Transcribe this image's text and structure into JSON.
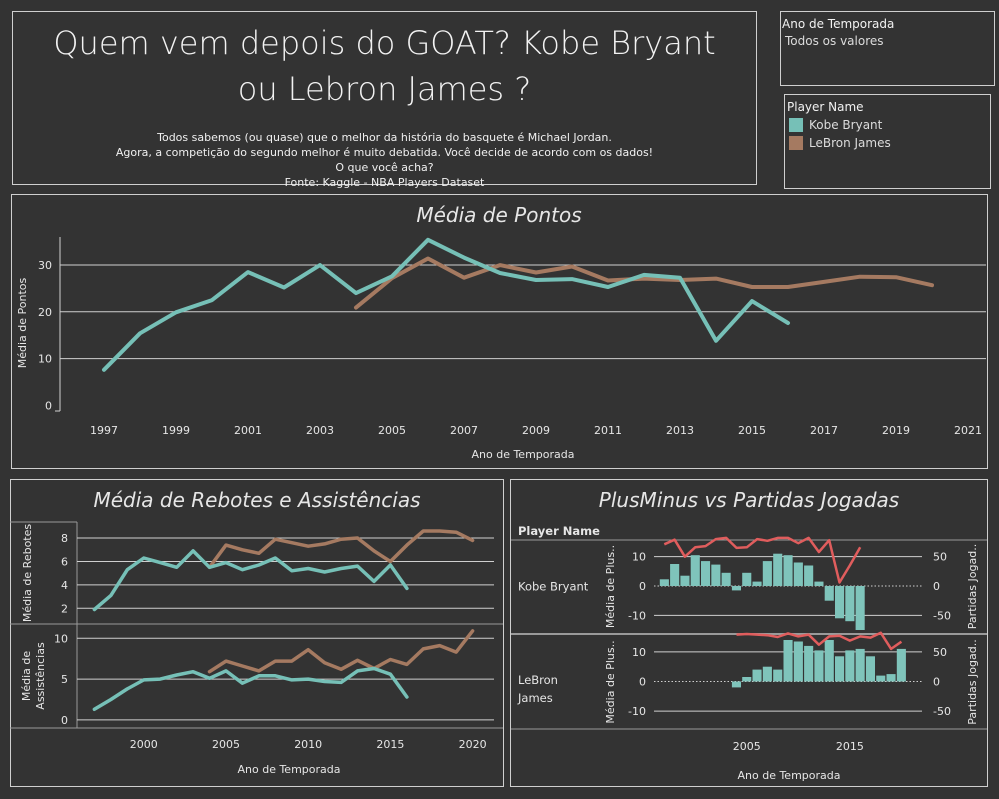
{
  "header": {
    "title": "Quem vem depois do GOAT? Kobe Bryant ou Lebron James ?",
    "subtitle_lines": [
      "Todos sabemos (ou quase) que o melhor da história do basquete é Michael Jordan.",
      "Agora, a competição do segundo melhor é muito debatida. Você decide de acordo com os dados!",
      "O que você acha?",
      "Fonte: Kaggle - NBA Players Dataset"
    ]
  },
  "filter": {
    "label": "Ano de Temporada",
    "value": "Todos os valores"
  },
  "legend": {
    "title": "Player Name",
    "items": [
      {
        "name": "Kobe Bryant",
        "color": "#76c0b7"
      },
      {
        "name": "LeBron James",
        "color": "#a57a61"
      }
    ]
  },
  "colors": {
    "kobe": "#76c0b7",
    "lebron": "#a57a61",
    "plusminus_line": "#e05d5d",
    "bar": "#7fc4bb"
  },
  "chart_data": [
    {
      "type": "line",
      "title": "Média de Pontos",
      "xlabel": "Ano de Temporada",
      "ylabel": "Média de Pontos",
      "xlim": [
        1996,
        2021.5
      ],
      "ylim": [
        -1,
        36
      ],
      "xticks": [
        1997,
        1999,
        2001,
        2003,
        2005,
        2007,
        2009,
        2011,
        2013,
        2015,
        2017,
        2019,
        2021
      ],
      "yticks": [
        0,
        10,
        20,
        30
      ],
      "series": [
        {
          "name": "Kobe Bryant",
          "x": [
            1997,
            1998,
            1999,
            2000,
            2001,
            2002,
            2003,
            2004,
            2005,
            2006,
            2007,
            2008,
            2009,
            2010,
            2011,
            2012,
            2013,
            2014,
            2015,
            2016
          ],
          "y": [
            7.6,
            15.4,
            19.9,
            22.5,
            28.5,
            25.2,
            30.0,
            24.0,
            27.6,
            35.4,
            31.6,
            28.3,
            26.8,
            27.0,
            25.3,
            27.9,
            27.3,
            13.8,
            22.3,
            17.6
          ]
        },
        {
          "name": "LeBron James",
          "x": [
            2004,
            2005,
            2006,
            2007,
            2008,
            2009,
            2010,
            2011,
            2012,
            2013,
            2014,
            2015,
            2016,
            2017,
            2018,
            2019,
            2020
          ],
          "y": [
            20.9,
            27.2,
            31.4,
            27.3,
            30.0,
            28.4,
            29.7,
            26.7,
            27.1,
            26.8,
            27.1,
            25.3,
            25.3,
            26.4,
            27.5,
            27.4,
            25.7
          ]
        }
      ]
    },
    {
      "type": "line",
      "title": "Média de Rebotes e Assistências",
      "xlabel": "Ano de Temporada",
      "xlim": [
        1996,
        2021.3
      ],
      "xticks": [
        2000,
        2005,
        2010,
        2015,
        2020
      ],
      "panels": [
        {
          "ylabel": "Média de Rebotes",
          "ylim": [
            1,
            9.2
          ],
          "yticks": [
            2,
            4,
            6,
            8
          ],
          "series": [
            {
              "name": "Kobe Bryant",
              "x": [
                1997,
                1998,
                1999,
                2000,
                2001,
                2002,
                2003,
                2004,
                2005,
                2006,
                2007,
                2008,
                2009,
                2010,
                2011,
                2012,
                2013,
                2014,
                2015,
                2016
              ],
              "y": [
                1.9,
                3.1,
                5.3,
                6.3,
                5.9,
                5.5,
                6.9,
                5.5,
                5.9,
                5.3,
                5.7,
                6.3,
                5.2,
                5.4,
                5.1,
                5.4,
                5.6,
                4.3,
                5.7,
                3.7
              ]
            },
            {
              "name": "LeBron James",
              "x": [
                2004,
                2005,
                2006,
                2007,
                2008,
                2009,
                2010,
                2011,
                2012,
                2013,
                2014,
                2015,
                2016,
                2017,
                2018,
                2019,
                2020
              ],
              "y": [
                5.5,
                7.4,
                7.0,
                6.7,
                7.9,
                7.6,
                7.3,
                7.5,
                7.9,
                8.0,
                6.9,
                6.0,
                7.4,
                8.6,
                8.6,
                8.5,
                7.8
              ]
            }
          ]
        },
        {
          "ylabel": "Média de Assistências",
          "ylim": [
            -0.5,
            11.5
          ],
          "yticks": [
            0,
            5,
            10
          ],
          "series": [
            {
              "name": "Kobe Bryant",
              "x": [
                1997,
                1998,
                1999,
                2000,
                2001,
                2002,
                2003,
                2004,
                2005,
                2006,
                2007,
                2008,
                2009,
                2010,
                2011,
                2012,
                2013,
                2014,
                2015,
                2016
              ],
              "y": [
                1.3,
                2.5,
                3.8,
                4.9,
                5.0,
                5.5,
                5.9,
                5.1,
                6.0,
                4.5,
                5.4,
                5.4,
                4.9,
                5.0,
                4.7,
                4.6,
                6.0,
                6.3,
                5.6,
                2.8
              ]
            },
            {
              "name": "LeBron James",
              "x": [
                2004,
                2005,
                2006,
                2007,
                2008,
                2009,
                2010,
                2011,
                2012,
                2013,
                2014,
                2015,
                2016,
                2017,
                2018,
                2019,
                2020
              ],
              "y": [
                5.9,
                7.2,
                6.6,
                6.0,
                7.2,
                7.2,
                8.6,
                7.0,
                6.2,
                7.3,
                6.3,
                7.4,
                6.8,
                8.7,
                9.1,
                8.3,
                10.9
              ]
            }
          ]
        }
      ]
    },
    {
      "type": "bar",
      "title": "PlusMinus vs Partidas Jogadas",
      "xlabel": "Ano de Temporada",
      "row_header": "Player Name",
      "xlim": [
        1996,
        2022
      ],
      "xticks": [
        2005,
        2015
      ],
      "bar_ylabel": "Média de Plus..",
      "line_ylabel": "Partidas Jogad..",
      "bar_ylim": [
        -15,
        15
      ],
      "bar_yticks": [
        -10,
        0,
        10
      ],
      "line_ylim": [
        -75,
        75
      ],
      "line_yticks": [
        -50,
        0,
        50
      ],
      "rows": [
        {
          "name": "Kobe Bryant",
          "x": [
            1997,
            1998,
            1999,
            2000,
            2001,
            2002,
            2003,
            2004,
            2005,
            2006,
            2007,
            2008,
            2009,
            2010,
            2011,
            2012,
            2013,
            2014,
            2015,
            2016
          ],
          "plusminus": [
            2.3,
            7.5,
            3.5,
            10.5,
            8.5,
            7.3,
            4.5,
            -1.5,
            4.5,
            1.5,
            8.5,
            11.0,
            10.5,
            8.0,
            7.0,
            1.5,
            -5.0,
            -11.0,
            -12.0,
            -15.0
          ],
          "games": [
            71,
            79,
            50,
            66,
            68,
            80,
            82,
            65,
            66,
            80,
            77,
            82,
            82,
            73,
            82,
            58,
            78,
            6,
            35,
            66
          ]
        },
        {
          "name": "LeBron James",
          "x": [
            2004,
            2005,
            2006,
            2007,
            2008,
            2009,
            2010,
            2011,
            2012,
            2013,
            2014,
            2015,
            2016,
            2017,
            2018,
            2019,
            2020
          ],
          "plusminus": [
            -2.0,
            1.5,
            4.0,
            5.0,
            4.0,
            14.0,
            13.5,
            12.0,
            10.5,
            14.0,
            8.5,
            10.5,
            11.0,
            8.5,
            2.0,
            2.5,
            11.0
          ],
          "games": [
            79,
            80,
            79,
            78,
            75,
            81,
            76,
            79,
            62,
            76,
            77,
            69,
            76,
            74,
            82,
            55,
            67
          ]
        }
      ]
    }
  ]
}
